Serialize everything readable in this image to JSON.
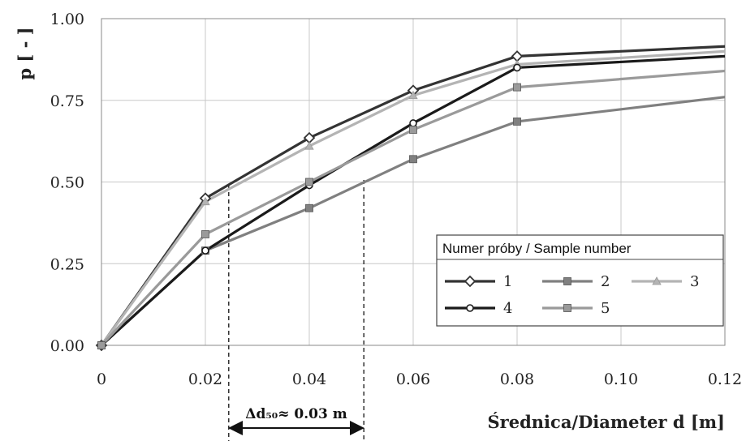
{
  "chart_data": {
    "type": "line",
    "xlabel": "Średnica/Diameter d [m]",
    "ylabel": "p [ - ]",
    "xlim": [
      0,
      0.12
    ],
    "ylim": [
      0,
      1.0
    ],
    "x_ticks": [
      "0",
      "0.02",
      "0.04",
      "0.06",
      "0.08",
      "0.10",
      "0.12"
    ],
    "y_ticks": [
      "0.00",
      "0.25",
      "0.50",
      "0.75",
      "1.00"
    ],
    "grid": true,
    "legend": {
      "title": "Numer próby / Sample number",
      "placement": "bottom-right"
    },
    "series": [
      {
        "name": "1",
        "color": "#333333",
        "marker": "diamond-open",
        "x": [
          0,
          0.02,
          0.04,
          0.06,
          0.08,
          0.12
        ],
        "y": [
          0,
          0.45,
          0.635,
          0.78,
          0.885,
          0.915
        ]
      },
      {
        "name": "2",
        "color": "#808080",
        "marker": "square",
        "x": [
          0,
          0.02,
          0.04,
          0.06,
          0.08,
          0.12
        ],
        "y": [
          0,
          0.29,
          0.42,
          0.57,
          0.685,
          0.76
        ]
      },
      {
        "name": "3",
        "color": "#b4b4b4",
        "marker": "triangle",
        "x": [
          0,
          0.02,
          0.04,
          0.06,
          0.08,
          0.12
        ],
        "y": [
          0,
          0.44,
          0.61,
          0.765,
          0.86,
          0.9
        ]
      },
      {
        "name": "4",
        "color": "#1a1a1a",
        "marker": "circle-open",
        "x": [
          0,
          0.02,
          0.04,
          0.06,
          0.08,
          0.12
        ],
        "y": [
          0,
          0.29,
          0.49,
          0.68,
          0.85,
          0.885
        ]
      },
      {
        "name": "5",
        "color": "#9a9a9a",
        "marker": "square",
        "x": [
          0,
          0.02,
          0.04,
          0.06,
          0.08,
          0.12
        ],
        "y": [
          0,
          0.34,
          0.5,
          0.66,
          0.79,
          0.84
        ]
      }
    ],
    "annotation": {
      "text": "Δd₅₀≈ 0.03 m",
      "from_x": 0.0245,
      "to_x": 0.0505
    }
  }
}
